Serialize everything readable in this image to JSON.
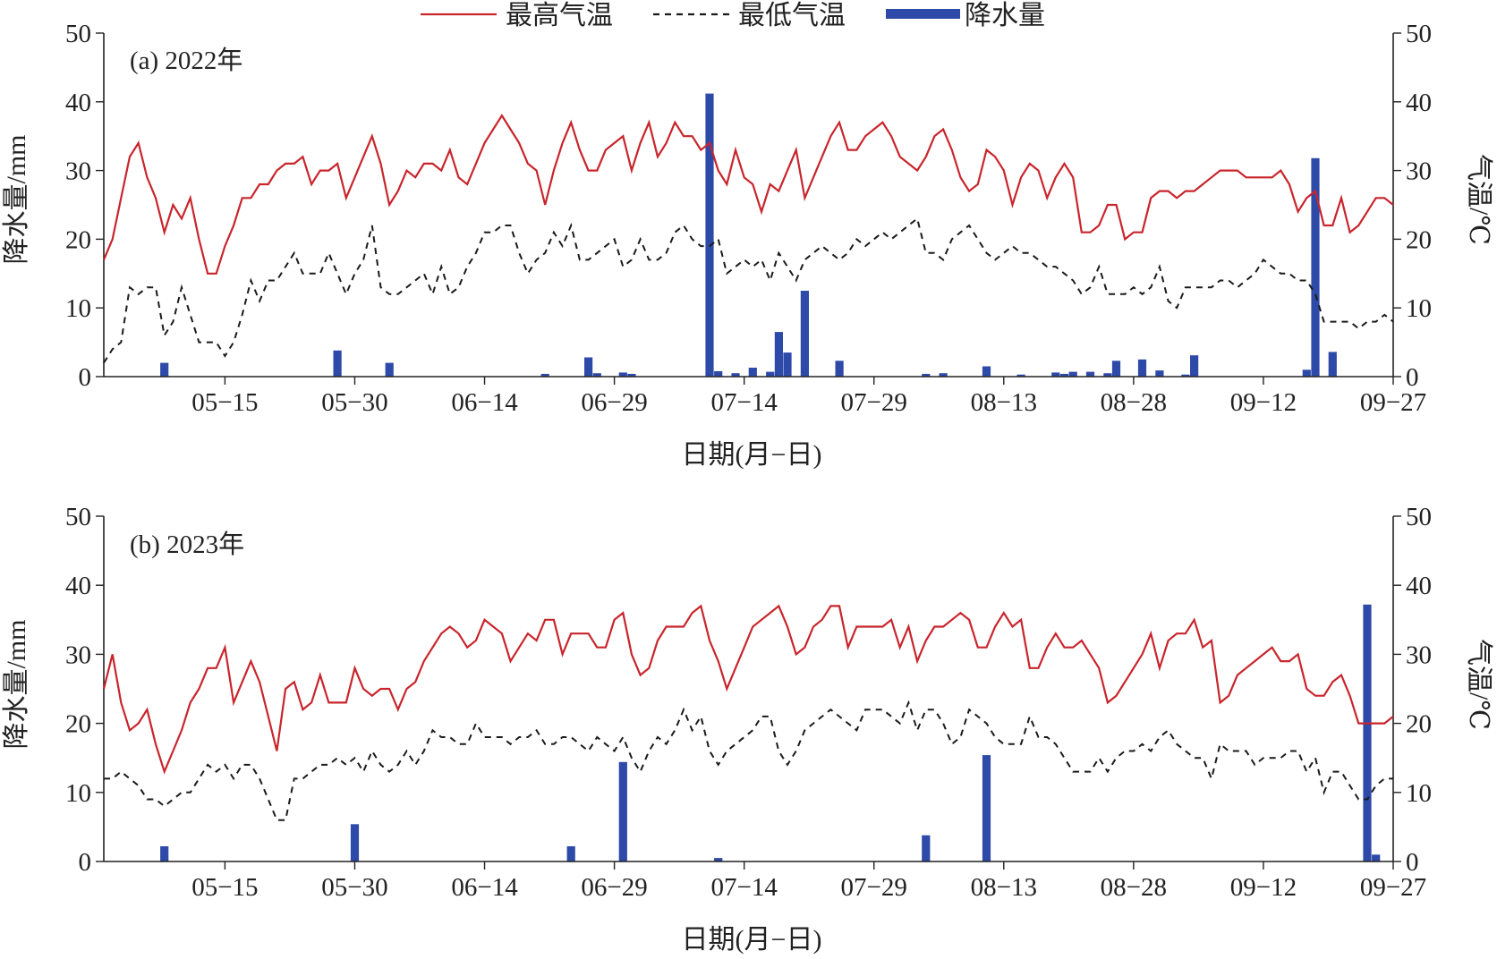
{
  "legend": {
    "tmax": "最高气温",
    "tmin": "最低气温",
    "precip": "降水量"
  },
  "colors": {
    "tmax": "#c8252c",
    "tmin": "#1a1a1a",
    "precip": "#2e4aa8",
    "axis": "#222222"
  },
  "chart_data": [
    {
      "type": "bar+line",
      "panel_label": "(a) 2022年",
      "xlabel": "日期(月−日)",
      "ylabel_left": "降水量/mm",
      "ylabel_right": "气温/℃",
      "ylim_left": [
        0,
        50
      ],
      "ylim_right": [
        0,
        50
      ],
      "yticks_left": [
        "0",
        "10",
        "20",
        "30",
        "40",
        "50"
      ],
      "yticks_right": [
        "0",
        "10",
        "20",
        "30",
        "40",
        "50"
      ],
      "x_start_date": "05-01",
      "x_end_date": "09-27",
      "x_ticks": [
        {
          "date": "05-15",
          "label": "05−15"
        },
        {
          "date": "05-30",
          "label": "05−30"
        },
        {
          "date": "06-14",
          "label": "06−14"
        },
        {
          "date": "06-29",
          "label": "06−29"
        },
        {
          "date": "07-14",
          "label": "07−14"
        },
        {
          "date": "07-29",
          "label": "07−29"
        },
        {
          "date": "08-13",
          "label": "08−13"
        },
        {
          "date": "08-28",
          "label": "08−28"
        },
        {
          "date": "09-12",
          "label": "09−12"
        },
        {
          "date": "09-27",
          "label": "09−27"
        }
      ],
      "tmax": [
        17,
        20,
        26,
        32,
        34,
        29,
        26,
        21,
        25,
        23,
        26,
        20,
        15,
        15,
        19,
        22,
        26,
        26,
        28,
        28,
        30,
        31,
        31,
        32,
        28,
        30,
        30,
        31,
        26,
        29,
        32,
        35,
        31,
        25,
        27,
        30,
        29,
        31,
        31,
        30,
        33,
        29,
        28,
        31,
        34,
        36,
        38,
        36,
        34,
        31,
        30,
        25,
        30,
        34,
        37,
        33,
        30,
        30,
        33,
        34,
        35,
        30,
        34,
        37,
        32,
        34,
        37,
        35,
        35,
        33,
        34,
        30,
        28,
        33,
        29,
        28,
        24,
        28,
        27,
        30,
        33,
        26,
        29,
        32,
        35,
        37,
        33,
        33,
        35,
        36,
        37,
        35,
        32,
        31,
        30,
        32,
        35,
        36,
        33,
        29,
        27,
        28,
        33,
        32,
        30,
        25,
        29,
        31,
        30,
        26,
        29,
        31,
        29,
        21,
        21,
        22,
        25,
        25,
        20,
        21,
        21,
        26,
        27,
        27,
        26,
        27,
        27,
        28,
        29,
        30,
        30,
        30,
        29,
        29,
        29,
        29,
        30,
        28,
        24,
        26,
        27,
        22,
        22,
        26,
        21,
        22,
        24,
        26,
        26,
        25
      ],
      "tmin": [
        2,
        4,
        5,
        13,
        12,
        13,
        13,
        6,
        8,
        13,
        9,
        5,
        5,
        5,
        3,
        5,
        9,
        14,
        11,
        14,
        14,
        16,
        18,
        15,
        15,
        15,
        18,
        15,
        12,
        15,
        17,
        22,
        13,
        12,
        12,
        13,
        14,
        15,
        12,
        16,
        12,
        13,
        16,
        18,
        21,
        21,
        22,
        22,
        18,
        15,
        17,
        18,
        21,
        19,
        22,
        17,
        17,
        18,
        19,
        20,
        16,
        17,
        20,
        17,
        17,
        18,
        21,
        22,
        20,
        19,
        19,
        20,
        15,
        16,
        17,
        16,
        17,
        14,
        18,
        16,
        14,
        17,
        18,
        19,
        18,
        17,
        18,
        20,
        19,
        20,
        21,
        20,
        21,
        22,
        23,
        18,
        18,
        17,
        20,
        21,
        22,
        20,
        18,
        17,
        18,
        19,
        18,
        18,
        17,
        16,
        16,
        15,
        14,
        12,
        13,
        16,
        12,
        12,
        12,
        13,
        12,
        13,
        16,
        11,
        10,
        13,
        13,
        13,
        13,
        14,
        14,
        13,
        14,
        15,
        17,
        16,
        15,
        15,
        14,
        14,
        12,
        8,
        8,
        8,
        8,
        7,
        8,
        8,
        9,
        8
      ],
      "precip": [
        {
          "date": "05-08",
          "value": 2.0
        },
        {
          "date": "05-28",
          "value": 3.8
        },
        {
          "date": "06-03",
          "value": 2.0
        },
        {
          "date": "06-21",
          "value": 0.4
        },
        {
          "date": "06-26",
          "value": 2.8
        },
        {
          "date": "06-27",
          "value": 0.5
        },
        {
          "date": "06-30",
          "value": 0.6
        },
        {
          "date": "07-01",
          "value": 0.4
        },
        {
          "date": "07-10",
          "value": 41.2
        },
        {
          "date": "07-11",
          "value": 0.8
        },
        {
          "date": "07-13",
          "value": 0.5
        },
        {
          "date": "07-15",
          "value": 1.3
        },
        {
          "date": "07-17",
          "value": 0.7
        },
        {
          "date": "07-18",
          "value": 6.5
        },
        {
          "date": "07-19",
          "value": 3.5
        },
        {
          "date": "07-21",
          "value": 12.5
        },
        {
          "date": "07-25",
          "value": 2.3
        },
        {
          "date": "08-04",
          "value": 0.4
        },
        {
          "date": "08-06",
          "value": 0.5
        },
        {
          "date": "08-11",
          "value": 1.5
        },
        {
          "date": "08-15",
          "value": 0.3
        },
        {
          "date": "08-19",
          "value": 0.6
        },
        {
          "date": "08-20",
          "value": 0.4
        },
        {
          "date": "08-21",
          "value": 0.7
        },
        {
          "date": "08-23",
          "value": 0.7
        },
        {
          "date": "08-25",
          "value": 0.5
        },
        {
          "date": "08-26",
          "value": 2.3
        },
        {
          "date": "08-29",
          "value": 2.5
        },
        {
          "date": "08-31",
          "value": 0.9
        },
        {
          "date": "09-03",
          "value": 0.3
        },
        {
          "date": "09-04",
          "value": 3.1
        },
        {
          "date": "09-17",
          "value": 1.0
        },
        {
          "date": "09-18",
          "value": 31.8
        },
        {
          "date": "09-20",
          "value": 3.6
        }
      ]
    },
    {
      "type": "bar+line",
      "panel_label": "(b) 2023年",
      "xlabel": "日期(月−日)",
      "ylabel_left": "降水量/mm",
      "ylabel_right": "气温/℃",
      "ylim_left": [
        0,
        50
      ],
      "ylim_right": [
        0,
        50
      ],
      "yticks_left": [
        "0",
        "10",
        "20",
        "30",
        "40",
        "50"
      ],
      "yticks_right": [
        "0",
        "10",
        "20",
        "30",
        "40",
        "50"
      ],
      "x_start_date": "05-01",
      "x_end_date": "09-27",
      "x_ticks": [
        {
          "date": "05-15",
          "label": "05−15"
        },
        {
          "date": "05-30",
          "label": "05−30"
        },
        {
          "date": "06-14",
          "label": "06−14"
        },
        {
          "date": "06-29",
          "label": "06−29"
        },
        {
          "date": "07-14",
          "label": "07−14"
        },
        {
          "date": "07-29",
          "label": "07−29"
        },
        {
          "date": "08-13",
          "label": "08−13"
        },
        {
          "date": "08-28",
          "label": "08−28"
        },
        {
          "date": "09-12",
          "label": "09−12"
        },
        {
          "date": "09-27",
          "label": "09−27"
        }
      ],
      "tmax": [
        25,
        30,
        23,
        19,
        20,
        22,
        17,
        13,
        16,
        19,
        23,
        25,
        28,
        28,
        31,
        23,
        26,
        29,
        26,
        21,
        16,
        25,
        26,
        22,
        23,
        27,
        23,
        23,
        23,
        28,
        25,
        24,
        25,
        25,
        22,
        25,
        26,
        29,
        31,
        33,
        34,
        33,
        31,
        32,
        35,
        34,
        33,
        29,
        31,
        33,
        32,
        35,
        35,
        30,
        33,
        33,
        33,
        31,
        31,
        35,
        36,
        30,
        27,
        28,
        32,
        34,
        34,
        34,
        36,
        37,
        32,
        29,
        25,
        28,
        31,
        34,
        35,
        36,
        37,
        34,
        30,
        31,
        34,
        35,
        37,
        37,
        31,
        34,
        34,
        34,
        34,
        35,
        31,
        34,
        29,
        32,
        34,
        34,
        35,
        36,
        35,
        31,
        31,
        34,
        36,
        34,
        35,
        28,
        28,
        31,
        33,
        31,
        31,
        32,
        30,
        28,
        23,
        24,
        26,
        28,
        30,
        33,
        28,
        32,
        33,
        33,
        35,
        31,
        32,
        23,
        24,
        27,
        28,
        29,
        30,
        31,
        29,
        29,
        30,
        25,
        24,
        24,
        26,
        27,
        24,
        20,
        20,
        20,
        20,
        21
      ],
      "tmin": [
        12,
        12,
        13,
        12,
        11,
        9,
        9,
        8,
        9,
        10,
        10,
        12,
        14,
        13,
        14,
        12,
        14,
        14,
        12,
        9,
        6,
        6,
        12,
        12,
        13,
        14,
        14,
        15,
        14,
        15,
        13,
        16,
        14,
        13,
        14,
        16,
        14,
        16,
        19,
        18,
        18,
        17,
        17,
        20,
        18,
        18,
        18,
        17,
        18,
        18,
        19,
        17,
        17,
        18,
        18,
        17,
        16,
        18,
        17,
        16,
        18,
        15,
        13,
        16,
        18,
        17,
        19,
        22,
        19,
        21,
        16,
        14,
        16,
        17,
        18,
        19,
        21,
        21,
        16,
        14,
        16,
        19,
        20,
        21,
        22,
        21,
        20,
        19,
        22,
        22,
        22,
        21,
        20,
        23,
        19,
        22,
        22,
        20,
        17,
        18,
        22,
        21,
        20,
        18,
        17,
        17,
        17,
        21,
        18,
        18,
        17,
        15,
        13,
        13,
        13,
        15,
        13,
        15,
        16,
        16,
        17,
        16,
        18,
        19,
        17,
        16,
        15,
        15,
        12,
        17,
        16,
        16,
        16,
        14,
        15,
        15,
        15,
        16,
        16,
        13,
        15,
        10,
        13,
        13,
        11,
        9,
        9,
        11,
        12,
        12
      ],
      "precip": [
        {
          "date": "05-08",
          "value": 2.2
        },
        {
          "date": "05-30",
          "value": 5.4
        },
        {
          "date": "06-24",
          "value": 2.2
        },
        {
          "date": "06-30",
          "value": 14.4
        },
        {
          "date": "07-11",
          "value": 0.5
        },
        {
          "date": "08-04",
          "value": 3.8
        },
        {
          "date": "08-11",
          "value": 15.4
        },
        {
          "date": "09-24",
          "value": 37.2
        },
        {
          "date": "09-25",
          "value": 1.0
        }
      ]
    }
  ]
}
